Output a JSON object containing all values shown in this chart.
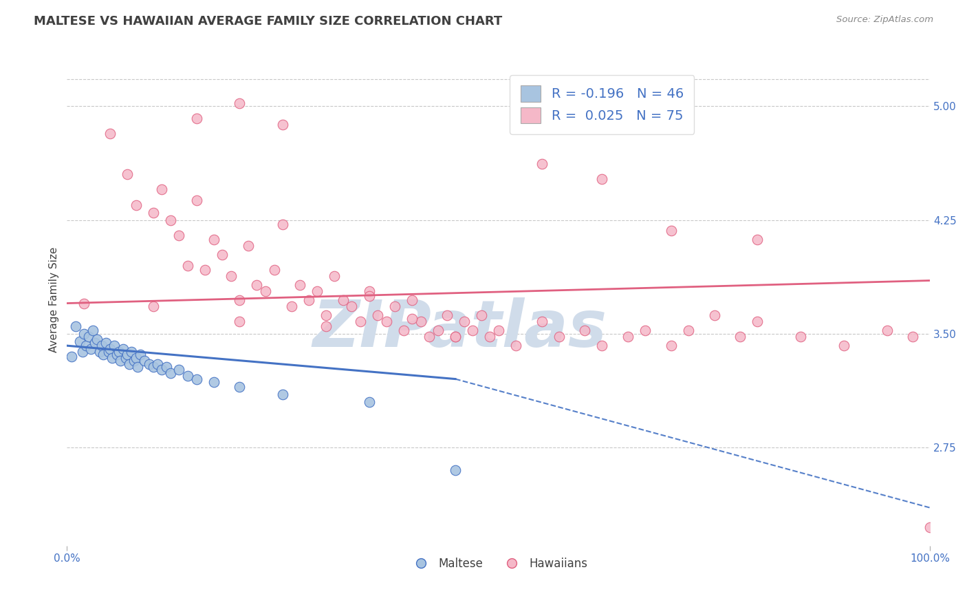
{
  "title": "MALTESE VS HAWAIIAN AVERAGE FAMILY SIZE CORRELATION CHART",
  "source_text": "Source: ZipAtlas.com",
  "ylabel": "Average Family Size",
  "xlim": [
    0,
    100
  ],
  "ylim": [
    2.1,
    5.35
  ],
  "yticks": [
    2.75,
    3.5,
    4.25,
    5.0
  ],
  "xticks": [
    0,
    100
  ],
  "xticklabels": [
    "0.0%",
    "100.0%"
  ],
  "legend_r1": "R = -0.196   N = 46",
  "legend_r2": "R =  0.025   N = 75",
  "blue_color": "#a8c4e0",
  "pink_color": "#f5b8c8",
  "blue_line_color": "#4472c4",
  "pink_line_color": "#e06080",
  "grid_color": "#c8c8c8",
  "title_color": "#404040",
  "axis_label_color": "#4472c4",
  "maltese_x": [
    0.5,
    1.0,
    1.5,
    1.8,
    2.0,
    2.2,
    2.5,
    2.8,
    3.0,
    3.2,
    3.5,
    3.8,
    4.0,
    4.2,
    4.5,
    4.8,
    5.0,
    5.2,
    5.5,
    5.8,
    6.0,
    6.2,
    6.5,
    6.8,
    7.0,
    7.2,
    7.5,
    7.8,
    8.0,
    8.2,
    8.5,
    9.0,
    9.5,
    10.0,
    10.5,
    11.0,
    11.5,
    12.0,
    13.0,
    14.0,
    15.0,
    17.0,
    20.0,
    25.0,
    35.0,
    45.0
  ],
  "maltese_y": [
    3.35,
    3.55,
    3.45,
    3.38,
    3.5,
    3.42,
    3.48,
    3.4,
    3.52,
    3.44,
    3.46,
    3.38,
    3.42,
    3.36,
    3.44,
    3.38,
    3.4,
    3.34,
    3.42,
    3.36,
    3.38,
    3.32,
    3.4,
    3.34,
    3.36,
    3.3,
    3.38,
    3.32,
    3.34,
    3.28,
    3.36,
    3.32,
    3.3,
    3.28,
    3.3,
    3.26,
    3.28,
    3.24,
    3.26,
    3.22,
    3.2,
    3.18,
    3.15,
    3.1,
    3.05,
    2.6
  ],
  "hawaiian_x": [
    2,
    5,
    7,
    8,
    10,
    11,
    12,
    13,
    14,
    15,
    16,
    17,
    18,
    19,
    20,
    21,
    22,
    23,
    24,
    25,
    26,
    27,
    28,
    29,
    30,
    31,
    32,
    33,
    34,
    35,
    36,
    37,
    38,
    39,
    40,
    41,
    42,
    43,
    44,
    45,
    46,
    47,
    48,
    49,
    50,
    52,
    55,
    57,
    60,
    62,
    65,
    67,
    70,
    72,
    75,
    78,
    80,
    85,
    90,
    95,
    98,
    100,
    15,
    20,
    25,
    62,
    70,
    80,
    55,
    40,
    30,
    20,
    10,
    35,
    45
  ],
  "hawaiian_y": [
    3.7,
    4.82,
    4.55,
    4.35,
    4.3,
    4.45,
    4.25,
    4.15,
    3.95,
    4.38,
    3.92,
    4.12,
    4.02,
    3.88,
    3.72,
    4.08,
    3.82,
    3.78,
    3.92,
    4.22,
    3.68,
    3.82,
    3.72,
    3.78,
    3.62,
    3.88,
    3.72,
    3.68,
    3.58,
    3.78,
    3.62,
    3.58,
    3.68,
    3.52,
    3.72,
    3.58,
    3.48,
    3.52,
    3.62,
    3.48,
    3.58,
    3.52,
    3.62,
    3.48,
    3.52,
    3.42,
    3.58,
    3.48,
    3.52,
    3.42,
    3.48,
    3.52,
    3.42,
    3.52,
    3.62,
    3.48,
    3.58,
    3.48,
    3.42,
    3.52,
    3.48,
    2.22,
    4.92,
    5.02,
    4.88,
    4.52,
    4.18,
    4.12,
    4.62,
    3.6,
    3.55,
    3.58,
    3.68,
    3.75,
    3.48
  ],
  "blue_trend_x0": 0,
  "blue_trend_y0": 3.42,
  "blue_trend_x_solid_end": 45,
  "blue_trend_y_solid_end": 3.2,
  "blue_trend_x_dash_end": 100,
  "blue_trend_y_dash_end": 2.35,
  "pink_trend_y0": 3.7,
  "pink_trend_y1": 3.85,
  "watermark": "ZIPatlas",
  "watermark_color": "#d0dcea",
  "background_color": "#ffffff"
}
